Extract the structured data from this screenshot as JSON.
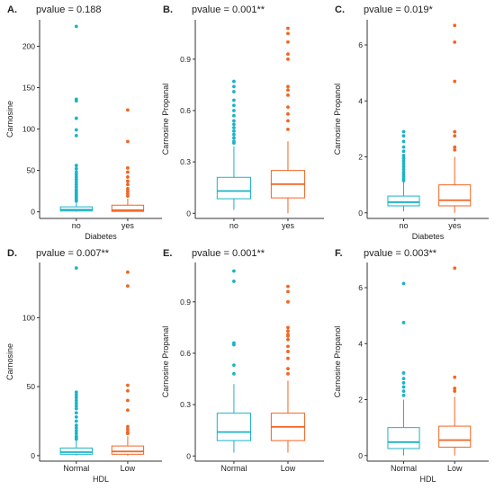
{
  "colors": {
    "group1": "#1CB3C7",
    "group2": "#F26522",
    "axis": "#333333"
  },
  "chart_data": [
    {
      "type": "boxplot",
      "panel_label": "A.",
      "pvalue_text": "pvalue = 0.188",
      "xlabel": "Diabetes",
      "ylabel": "Carnosine",
      "categories": [
        "no",
        "yes"
      ],
      "ylim": [
        -8,
        232
      ],
      "yticks": [
        0,
        50,
        100,
        150,
        200
      ],
      "boxes": [
        {
          "category": "no",
          "q1": 1,
          "median": 2.5,
          "q3": 6,
          "whisker_low": 0,
          "whisker_high": 11,
          "outliers": [
            224,
            136,
            134,
            113,
            99,
            92,
            56,
            52,
            48,
            45,
            42,
            39,
            36,
            33,
            30,
            27,
            25,
            23,
            21,
            19,
            17,
            15,
            13
          ]
        },
        {
          "category": "yes",
          "q1": 0.5,
          "median": 2,
          "q3": 8,
          "whisker_low": 0,
          "whisker_high": 16,
          "outliers": [
            123,
            85,
            53,
            48,
            42,
            37,
            33,
            28,
            25,
            22,
            19
          ]
        }
      ]
    },
    {
      "type": "boxplot",
      "panel_label": "B.",
      "pvalue_text": "pvalue = 0.001**",
      "xlabel": "",
      "ylabel": "Carnosine Propanal",
      "categories": [
        "no",
        "yes"
      ],
      "ylim": [
        -0.03,
        1.13
      ],
      "yticks": [
        0.0,
        0.3,
        0.6,
        0.9
      ],
      "boxes": [
        {
          "category": "no",
          "q1": 0.085,
          "median": 0.13,
          "q3": 0.21,
          "whisker_low": 0.02,
          "whisker_high": 0.39,
          "outliers": [
            0.77,
            0.74,
            0.71,
            0.66,
            0.63,
            0.6,
            0.57,
            0.54,
            0.52,
            0.5,
            0.48,
            0.46,
            0.44,
            0.42,
            0.41
          ]
        },
        {
          "category": "yes",
          "q1": 0.09,
          "median": 0.17,
          "q3": 0.25,
          "whisker_low": 0.0,
          "whisker_high": 0.42,
          "outliers": [
            1.08,
            1.05,
            1.0,
            0.93,
            0.9,
            0.74,
            0.72,
            0.69,
            0.62,
            0.58,
            0.54,
            0.49
          ]
        }
      ]
    },
    {
      "type": "boxplot",
      "panel_label": "C.",
      "pvalue_text": "pvalue = 0.019*",
      "xlabel": "Diabetes",
      "ylabel": "Carnosine Propanol",
      "categories": [
        "no",
        "yes"
      ],
      "ylim": [
        -0.2,
        6.9
      ],
      "yticks": [
        0,
        2,
        4,
        6
      ],
      "boxes": [
        {
          "category": "no",
          "q1": 0.25,
          "median": 0.38,
          "q3": 0.6,
          "whisker_low": 0.05,
          "whisker_high": 1.1,
          "outliers": [
            2.9,
            2.75,
            2.55,
            2.35,
            2.2,
            2.05,
            1.95,
            1.85,
            1.75,
            1.65,
            1.55,
            1.45,
            1.38,
            1.3,
            1.22,
            1.15
          ]
        },
        {
          "category": "yes",
          "q1": 0.25,
          "median": 0.45,
          "q3": 1.0,
          "whisker_low": 0.0,
          "whisker_high": 2.0,
          "outliers": [
            6.7,
            6.1,
            4.7,
            2.9,
            2.75,
            2.35,
            2.25
          ]
        }
      ]
    },
    {
      "type": "boxplot",
      "panel_label": "D.",
      "pvalue_text": "pvalue = 0.007**",
      "xlabel": "HDL",
      "ylabel": "Carnosine",
      "categories": [
        "Normal",
        "Low"
      ],
      "ylim": [
        -4,
        140
      ],
      "yticks": [
        0,
        50,
        100
      ],
      "boxes": [
        {
          "category": "Normal",
          "q1": 1,
          "median": 2.5,
          "q3": 5.5,
          "whisker_low": 0,
          "whisker_high": 11,
          "outliers": [
            136,
            46,
            44,
            42,
            40,
            38,
            36,
            34,
            31,
            28,
            25,
            22,
            20,
            18,
            16,
            14,
            13,
            12
          ]
        },
        {
          "category": "Low",
          "q1": 1,
          "median": 3,
          "q3": 7,
          "whisker_low": 0,
          "whisker_high": 14,
          "outliers": [
            133,
            123,
            51,
            47,
            40,
            33,
            21,
            19,
            17,
            16
          ]
        }
      ]
    },
    {
      "type": "boxplot",
      "panel_label": "E.",
      "pvalue_text": "pvalue = 0.001**",
      "xlabel": "",
      "ylabel": "Carnosine Propanal",
      "categories": [
        "Normal",
        "Low"
      ],
      "ylim": [
        -0.03,
        1.13
      ],
      "yticks": [
        0.0,
        0.3,
        0.6,
        0.9
      ],
      "boxes": [
        {
          "category": "Normal",
          "q1": 0.09,
          "median": 0.14,
          "q3": 0.25,
          "whisker_low": 0.02,
          "whisker_high": 0.42,
          "outliers": [
            1.08,
            1.02,
            0.66,
            0.65,
            0.53,
            0.48
          ]
        },
        {
          "category": "Low",
          "q1": 0.09,
          "median": 0.17,
          "q3": 0.25,
          "whisker_low": 0.02,
          "whisker_high": 0.44,
          "outliers": [
            0.99,
            0.96,
            0.9,
            0.75,
            0.73,
            0.71,
            0.7,
            0.68,
            0.64,
            0.61,
            0.57,
            0.51,
            0.48
          ]
        }
      ]
    },
    {
      "type": "boxplot",
      "panel_label": "F.",
      "pvalue_text": "pvalue = 0.003**",
      "xlabel": "HDL",
      "ylabel": "Carnosine Propanol",
      "categories": [
        "Normal",
        "Low"
      ],
      "ylim": [
        -0.2,
        6.9
      ],
      "yticks": [
        0,
        2,
        4,
        6
      ],
      "boxes": [
        {
          "category": "Normal",
          "q1": 0.25,
          "median": 0.48,
          "q3": 1.0,
          "whisker_low": 0.0,
          "whisker_high": 2.0,
          "outliers": [
            6.15,
            4.75,
            2.95,
            2.75,
            2.6,
            2.45,
            2.3,
            2.15
          ]
        },
        {
          "category": "Low",
          "q1": 0.3,
          "median": 0.55,
          "q3": 1.05,
          "whisker_low": 0.0,
          "whisker_high": 2.1,
          "outliers": [
            6.7,
            2.8,
            2.4,
            2.3
          ]
        }
      ]
    }
  ]
}
